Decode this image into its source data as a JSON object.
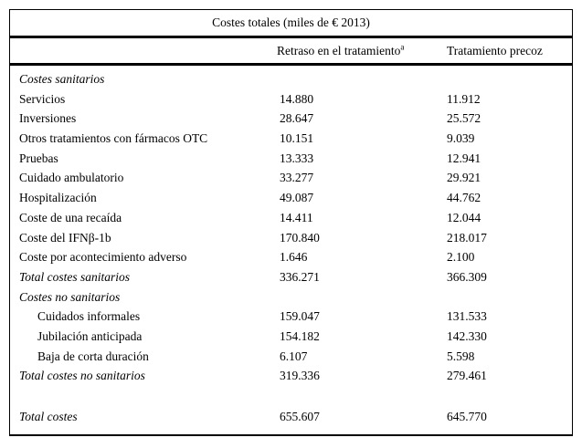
{
  "page": {
    "background_color": "#ffffff",
    "text_color": "#000000",
    "rule_color": "#000000"
  },
  "table": {
    "title": "Costes totales (miles de € 2013)",
    "columns": [
      {
        "label": "Retraso en el tratamiento",
        "superscript": "a"
      },
      {
        "label": "Tratamiento precoz",
        "superscript": ""
      }
    ],
    "rows": [
      {
        "label": "Costes sanitarios",
        "v1": "",
        "v2": "",
        "style": "section"
      },
      {
        "label": "Servicios",
        "v1": "14.880",
        "v2": "11.912",
        "style": "normal"
      },
      {
        "label": "Inversiones",
        "v1": "28.647",
        "v2": "25.572",
        "style": "normal"
      },
      {
        "label": "Otros tratamientos con fármacos OTC",
        "v1": "10.151",
        "v2": "9.039",
        "style": "normal"
      },
      {
        "label": "Pruebas",
        "v1": "13.333",
        "v2": "12.941",
        "style": "normal"
      },
      {
        "label": "Cuidado ambulatorio",
        "v1": "33.277",
        "v2": "29.921",
        "style": "normal"
      },
      {
        "label": "Hospitalización",
        "v1": "49.087",
        "v2": "44.762",
        "style": "normal"
      },
      {
        "label": "Coste de una recaída",
        "v1": "14.411",
        "v2": "12.044",
        "style": "normal"
      },
      {
        "label": "Coste del IFNβ-1b",
        "v1": "170.840",
        "v2": "218.017",
        "style": "normal"
      },
      {
        "label": "Coste por acontecimiento adverso",
        "v1": "1.646",
        "v2": "2.100",
        "style": "normal"
      },
      {
        "label": "Total costes sanitarios",
        "v1": "336.271",
        "v2": "366.309",
        "style": "total"
      },
      {
        "label": "Costes no sanitarios",
        "v1": "",
        "v2": "",
        "style": "section"
      },
      {
        "label": "Cuidados informales",
        "v1": "159.047",
        "v2": "131.533",
        "style": "indent"
      },
      {
        "label": "Jubilación anticipada",
        "v1": "154.182",
        "v2": "142.330",
        "style": "indent"
      },
      {
        "label": "Baja de corta duración",
        "v1": "6.107",
        "v2": "5.598",
        "style": "indent"
      },
      {
        "label": "Total costes no sanitarios",
        "v1": "319.336",
        "v2": "279.461",
        "style": "total"
      },
      {
        "label": "",
        "v1": "",
        "v2": "",
        "style": "spacer"
      },
      {
        "label": "Total costes",
        "v1": "655.607",
        "v2": "645.770",
        "style": "total"
      }
    ]
  }
}
